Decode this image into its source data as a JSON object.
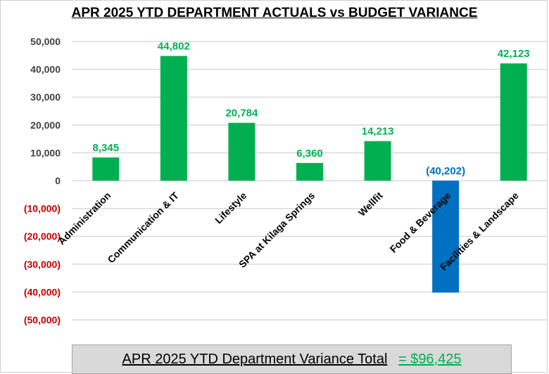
{
  "chart_data": {
    "type": "bar",
    "title": "APR 2025 YTD DEPARTMENT ACTUALS vs BUDGET VARIANCE",
    "xlabel": "",
    "ylabel": "",
    "ylim": [
      -50000,
      50000
    ],
    "yticks": [
      50000,
      40000,
      30000,
      20000,
      10000,
      0,
      -10000,
      -20000,
      -30000,
      -40000,
      -50000
    ],
    "ytick_labels": [
      "50,000",
      "40,000",
      "30,000",
      "20,000",
      "10,000",
      "0",
      "(10,000)",
      "(20,000)",
      "(30,000)",
      "(40,000)",
      "(50,000)"
    ],
    "grid": true,
    "legend": "none",
    "categories": [
      "Administration",
      "Communication & IT",
      "Lifestyle",
      "SPA at Kilaga Springs",
      "Wellfit",
      "Food & Beverage",
      "Facilities & Landscape"
    ],
    "values": [
      8345,
      44802,
      20784,
      6360,
      14213,
      -40202,
      42123
    ],
    "data_labels": [
      "8,345",
      "44,802",
      "20,784",
      "6,360",
      "14,213",
      "(40,202)",
      "42,123"
    ],
    "colors": {
      "positive": "#00b050",
      "negative": "#0070c0",
      "negative_tick": "#c00000",
      "gridline": "#d9d9d9"
    }
  },
  "summary": {
    "label": "APR 2025 YTD Department Variance Total",
    "value": "= $96,425"
  }
}
